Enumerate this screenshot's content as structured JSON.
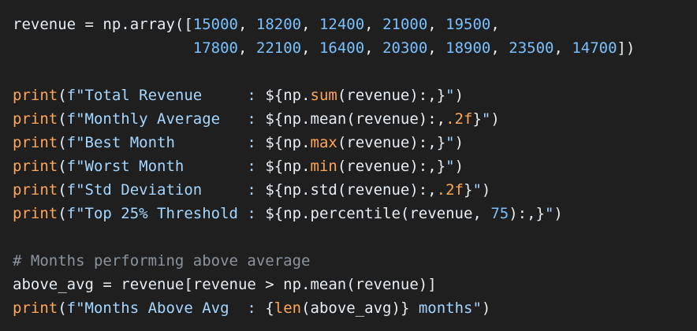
{
  "code": {
    "lines": [
      {
        "tokens": [
          {
            "text": "revenue = np.array([",
            "color": "#e6edf3"
          },
          {
            "text": "15000",
            "color": "#79c0ff"
          },
          {
            "text": ", ",
            "color": "#e6edf3"
          },
          {
            "text": "18200",
            "color": "#79c0ff"
          },
          {
            "text": ", ",
            "color": "#e6edf3"
          },
          {
            "text": "12400",
            "color": "#79c0ff"
          },
          {
            "text": ", ",
            "color": "#e6edf3"
          },
          {
            "text": "21000",
            "color": "#79c0ff"
          },
          {
            "text": ", ",
            "color": "#e6edf3"
          },
          {
            "text": "19500",
            "color": "#79c0ff"
          },
          {
            "text": ",",
            "color": "#e6edf3"
          }
        ]
      },
      {
        "tokens": [
          {
            "text": "                    ",
            "color": "#e6edf3"
          },
          {
            "text": "17800",
            "color": "#79c0ff"
          },
          {
            "text": ", ",
            "color": "#e6edf3"
          },
          {
            "text": "22100",
            "color": "#79c0ff"
          },
          {
            "text": ", ",
            "color": "#e6edf3"
          },
          {
            "text": "16400",
            "color": "#79c0ff"
          },
          {
            "text": ", ",
            "color": "#e6edf3"
          },
          {
            "text": "20300",
            "color": "#79c0ff"
          },
          {
            "text": ", ",
            "color": "#e6edf3"
          },
          {
            "text": "18900",
            "color": "#79c0ff"
          },
          {
            "text": ", ",
            "color": "#e6edf3"
          },
          {
            "text": "23500",
            "color": "#79c0ff"
          },
          {
            "text": ", ",
            "color": "#e6edf3"
          },
          {
            "text": "14700",
            "color": "#79c0ff"
          },
          {
            "text": "])",
            "color": "#e6edf3"
          }
        ]
      },
      {
        "tokens": []
      },
      {
        "tokens": [
          {
            "text": "print",
            "color": "#ffa657"
          },
          {
            "text": "(",
            "color": "#e6edf3"
          },
          {
            "text": "f\"Total Revenue     : ",
            "color": "#a5d6ff"
          },
          {
            "text": "${np.",
            "color": "#e6edf3"
          },
          {
            "text": "sum",
            "color": "#ffa657"
          },
          {
            "text": "(revenue):,}",
            "color": "#e6edf3"
          },
          {
            "text": "\"",
            "color": "#a5d6ff"
          },
          {
            "text": ")",
            "color": "#e6edf3"
          }
        ]
      },
      {
        "tokens": [
          {
            "text": "print",
            "color": "#ffa657"
          },
          {
            "text": "(",
            "color": "#e6edf3"
          },
          {
            "text": "f\"Monthly Average   : ",
            "color": "#a5d6ff"
          },
          {
            "text": "${np.mean(revenue):,",
            "color": "#e6edf3"
          },
          {
            "text": ".2f",
            "color": "#ffa657"
          },
          {
            "text": "}",
            "color": "#e6edf3"
          },
          {
            "text": "\"",
            "color": "#a5d6ff"
          },
          {
            "text": ")",
            "color": "#e6edf3"
          }
        ]
      },
      {
        "tokens": [
          {
            "text": "print",
            "color": "#ffa657"
          },
          {
            "text": "(",
            "color": "#e6edf3"
          },
          {
            "text": "f\"Best Month        : ",
            "color": "#a5d6ff"
          },
          {
            "text": "${np.",
            "color": "#e6edf3"
          },
          {
            "text": "max",
            "color": "#ffa657"
          },
          {
            "text": "(revenue):,}",
            "color": "#e6edf3"
          },
          {
            "text": "\"",
            "color": "#a5d6ff"
          },
          {
            "text": ")",
            "color": "#e6edf3"
          }
        ]
      },
      {
        "tokens": [
          {
            "text": "print",
            "color": "#ffa657"
          },
          {
            "text": "(",
            "color": "#e6edf3"
          },
          {
            "text": "f\"Worst Month       : ",
            "color": "#a5d6ff"
          },
          {
            "text": "${np.",
            "color": "#e6edf3"
          },
          {
            "text": "min",
            "color": "#ffa657"
          },
          {
            "text": "(revenue):,}",
            "color": "#e6edf3"
          },
          {
            "text": "\"",
            "color": "#a5d6ff"
          },
          {
            "text": ")",
            "color": "#e6edf3"
          }
        ]
      },
      {
        "tokens": [
          {
            "text": "print",
            "color": "#ffa657"
          },
          {
            "text": "(",
            "color": "#e6edf3"
          },
          {
            "text": "f\"Std Deviation     : ",
            "color": "#a5d6ff"
          },
          {
            "text": "${np.std(revenue):,",
            "color": "#e6edf3"
          },
          {
            "text": ".2f",
            "color": "#ffa657"
          },
          {
            "text": "}",
            "color": "#e6edf3"
          },
          {
            "text": "\"",
            "color": "#a5d6ff"
          },
          {
            "text": ")",
            "color": "#e6edf3"
          }
        ]
      },
      {
        "tokens": [
          {
            "text": "print",
            "color": "#ffa657"
          },
          {
            "text": "(",
            "color": "#e6edf3"
          },
          {
            "text": "f\"Top 25% Threshold : ",
            "color": "#a5d6ff"
          },
          {
            "text": "${np.percentile(revenue, ",
            "color": "#e6edf3"
          },
          {
            "text": "75",
            "color": "#79c0ff"
          },
          {
            "text": "):,}",
            "color": "#e6edf3"
          },
          {
            "text": "\"",
            "color": "#a5d6ff"
          },
          {
            "text": ")",
            "color": "#e6edf3"
          }
        ]
      },
      {
        "tokens": []
      },
      {
        "tokens": [
          {
            "text": "# Months performing above average",
            "color": "#8b949e"
          }
        ]
      },
      {
        "tokens": [
          {
            "text": "above_avg = revenue[revenue > np.mean(revenue)]",
            "color": "#e6edf3"
          }
        ]
      },
      {
        "tokens": [
          {
            "text": "print",
            "color": "#ffa657"
          },
          {
            "text": "(",
            "color": "#e6edf3"
          },
          {
            "text": "f\"Months Above Avg  : ",
            "color": "#a5d6ff"
          },
          {
            "text": "{",
            "color": "#e6edf3"
          },
          {
            "text": "len",
            "color": "#ffa657"
          },
          {
            "text": "(above_avg)}",
            "color": "#e6edf3"
          },
          {
            "text": " months\"",
            "color": "#a5d6ff"
          },
          {
            "text": ")",
            "color": "#e6edf3"
          }
        ]
      }
    ]
  }
}
